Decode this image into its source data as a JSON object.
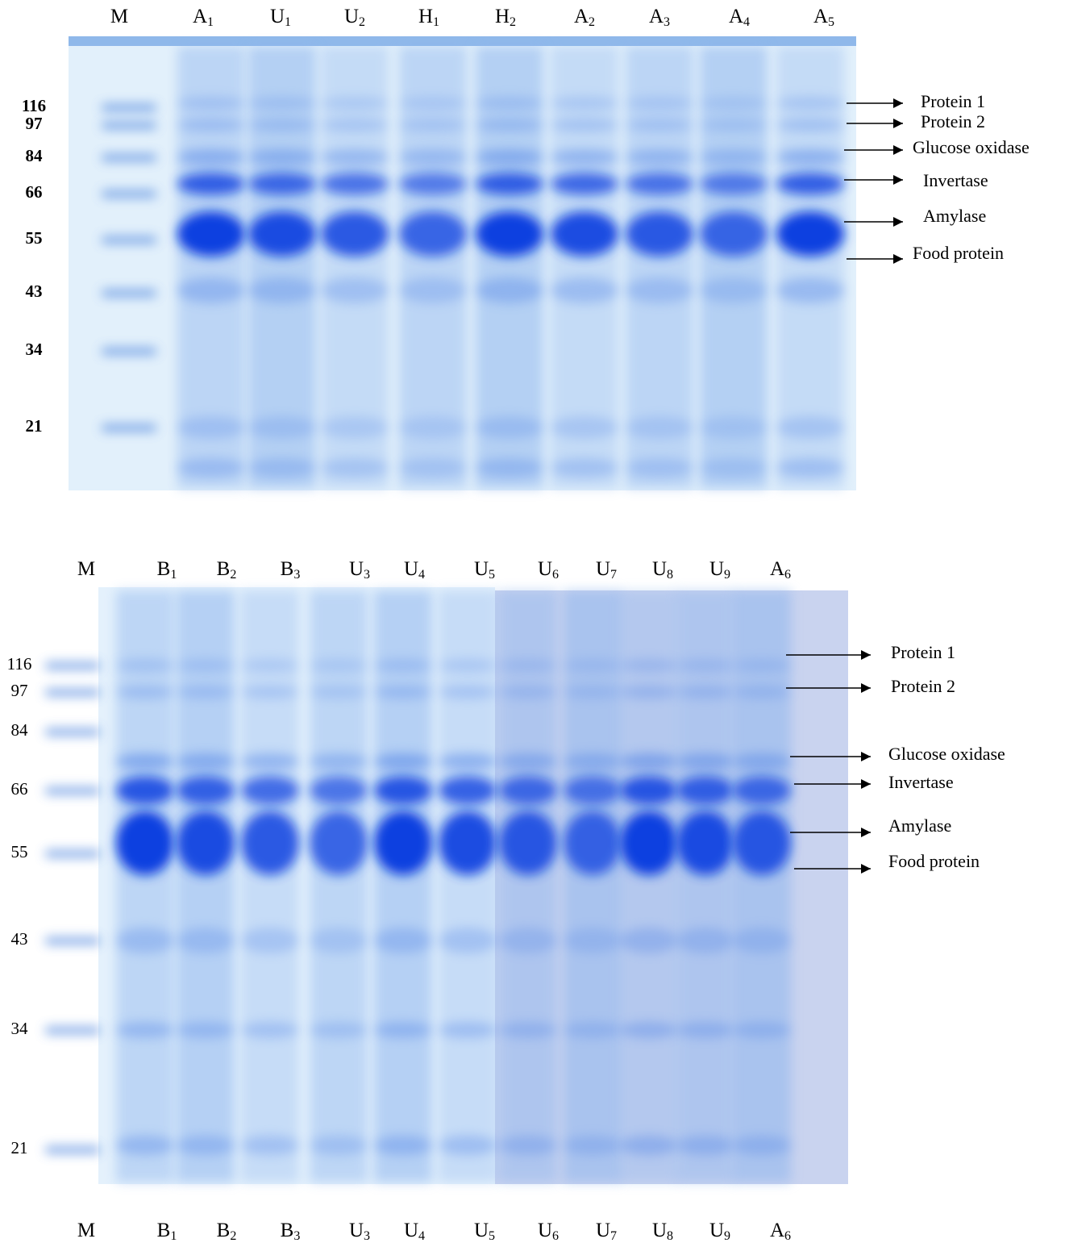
{
  "panels": [
    {
      "lanes": [
        {
          "letter": "M"
        },
        {
          "letter": "A",
          "sub": "1"
        },
        {
          "letter": "U",
          "sub": "1"
        },
        {
          "letter": "U",
          "sub": "2"
        },
        {
          "letter": "H",
          "sub": "1"
        },
        {
          "letter": "H",
          "sub": "2"
        },
        {
          "letter": "A",
          "sub": "2"
        },
        {
          "letter": "A",
          "sub": "3"
        },
        {
          "letter": "A",
          "sub": "4"
        },
        {
          "letter": "A",
          "sub": "5"
        }
      ],
      "markers": [
        116,
        97,
        84,
        66,
        55,
        43,
        34,
        21
      ],
      "annotations": [
        "Protein 1",
        "Protein 2",
        "Glucose oxidase",
        "Invertase",
        "Amylase",
        "Food protein"
      ]
    },
    {
      "lanes": [
        {
          "letter": "M"
        },
        {
          "letter": "B",
          "sub": "1"
        },
        {
          "letter": "B",
          "sub": "2"
        },
        {
          "letter": "B",
          "sub": "3"
        },
        {
          "letter": "U",
          "sub": "3"
        },
        {
          "letter": "U",
          "sub": "4"
        },
        {
          "letter": "U",
          "sub": "5"
        },
        {
          "letter": "U",
          "sub": "6"
        },
        {
          "letter": "U",
          "sub": "7"
        },
        {
          "letter": "U",
          "sub": "8"
        },
        {
          "letter": "U",
          "sub": "9"
        },
        {
          "letter": "A",
          "sub": "6"
        }
      ],
      "markers": [
        116,
        97,
        84,
        66,
        55,
        43,
        34,
        21
      ],
      "annotations": [
        "Protein 1",
        "Protein 2",
        "Glucose oxidase",
        "Invertase",
        "Amylase",
        "Food protein"
      ]
    }
  ]
}
